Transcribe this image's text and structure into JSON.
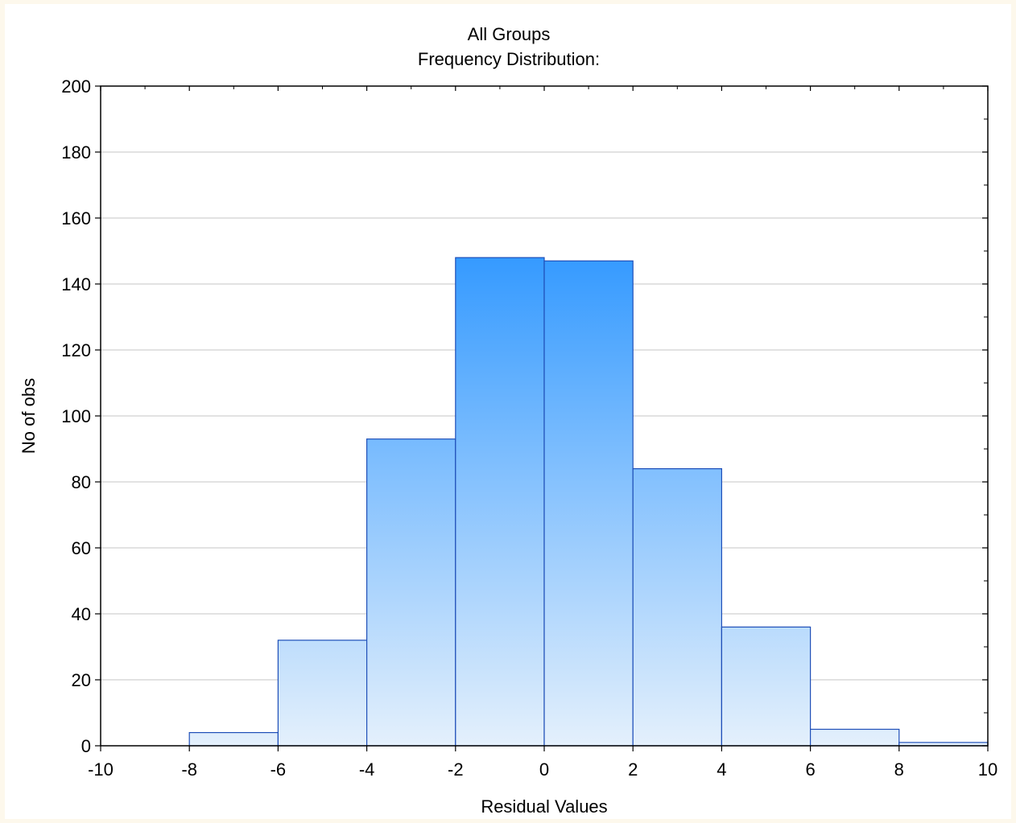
{
  "chart_data": {
    "type": "bar",
    "title": "All Groups",
    "subtitle": "Frequency Distribution:",
    "xlabel": "Residual Values",
    "ylabel": "No of obs",
    "xlim": [
      -10,
      10
    ],
    "ylim": [
      0,
      200
    ],
    "x_ticks": [
      -10,
      -8,
      -6,
      -4,
      -2,
      0,
      2,
      4,
      6,
      8,
      10
    ],
    "y_ticks": [
      0,
      20,
      40,
      60,
      80,
      100,
      120,
      140,
      160,
      180,
      200
    ],
    "grid": true,
    "bins": [
      {
        "start": -8,
        "end": -6,
        "count": 4
      },
      {
        "start": -6,
        "end": -4,
        "count": 32
      },
      {
        "start": -4,
        "end": -2,
        "count": 93
      },
      {
        "start": -2,
        "end": 0,
        "count": 148
      },
      {
        "start": 0,
        "end": 2,
        "count": 147
      },
      {
        "start": 2,
        "end": 4,
        "count": 84
      },
      {
        "start": 4,
        "end": 6,
        "count": 36
      },
      {
        "start": 6,
        "end": 8,
        "count": 5
      },
      {
        "start": 8,
        "end": 10,
        "count": 1
      }
    ],
    "colors": {
      "bar_top": "#3399ff",
      "bar_bottom": "#e4f0fc",
      "bar_stroke": "#1f4fb8",
      "grid": "#d0d0d0",
      "axis": "#000000"
    }
  }
}
